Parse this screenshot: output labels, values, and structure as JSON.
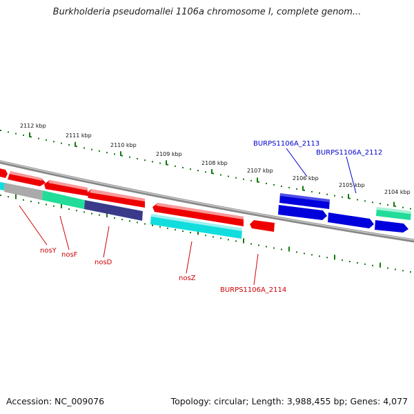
{
  "title": "Burkholderia pseudomallei 1106a chromosome I, complete genom...",
  "footer": {
    "accession": "Accession: NC_009076",
    "summary": "Topology: circular; Length: 3,988,455 bp; Genes: 4,077"
  },
  "tick_labels": [
    "2112 kbp",
    "2111 kbp",
    "2110 kbp",
    "2109 kbp",
    "2108 kbp",
    "2107 kbp",
    "2106 kbp",
    "2105 kbp",
    "2104 kbp"
  ],
  "gene_labels": [
    {
      "text": "BURPS1106A_2113",
      "color": "#0000cc"
    },
    {
      "text": "BURPS1106A_2112",
      "color": "#0000cc"
    },
    {
      "text": "nosY",
      "color": "#cc0000"
    },
    {
      "text": "nosF",
      "color": "#cc0000"
    },
    {
      "text": "nosD",
      "color": "#cc0000"
    },
    {
      "text": "nosZ",
      "color": "#cc0000"
    },
    {
      "text": "BURPS1106A_2114",
      "color": "#cc0000"
    }
  ],
  "colors": {
    "red": "#ee0000",
    "blue": "#0000dd",
    "green": "#22dd99",
    "cyan": "#11dddd",
    "navy": "#3a3a8a",
    "gray": "#aaaaaa",
    "tick": "#117711",
    "backbone": "#888888"
  }
}
